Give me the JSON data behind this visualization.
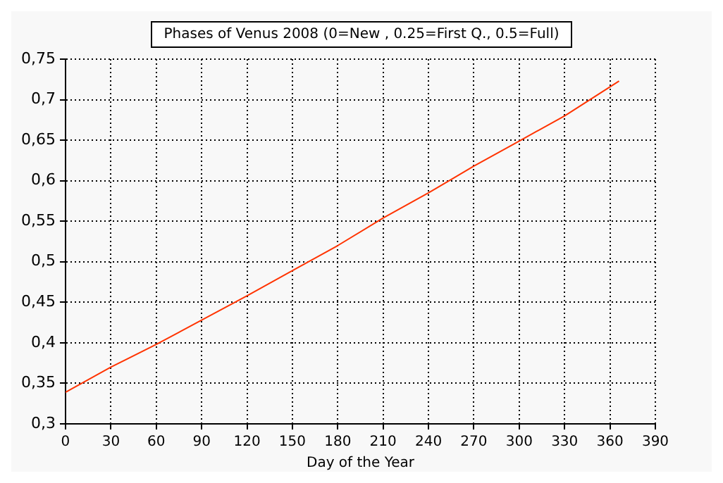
{
  "chart_data": {
    "type": "line",
    "title": "Phases of Venus 2008 (0=New , 0.25=First Q., 0.5=Full)",
    "xlabel": "Day of the Year",
    "series": [
      {
        "color": "#ff3300",
        "x": [
          0,
          30,
          60,
          90,
          120,
          150,
          180,
          210,
          240,
          270,
          300,
          330,
          366
        ],
        "values": [
          0.339,
          0.37,
          0.398,
          0.428,
          0.458,
          0.489,
          0.52,
          0.554,
          0.585,
          0.618,
          0.649,
          0.68,
          0.723
        ]
      }
    ],
    "xlim": [
      0,
      390
    ],
    "xticks": [
      0,
      30,
      60,
      90,
      120,
      150,
      180,
      210,
      240,
      270,
      300,
      330,
      360,
      390
    ],
    "ylim": [
      0.3,
      0.75
    ],
    "yticks": [
      {
        "value": 0.3,
        "label": "0,3"
      },
      {
        "value": 0.35,
        "label": "0,35"
      },
      {
        "value": 0.4,
        "label": "0,4"
      },
      {
        "value": 0.45,
        "label": "0,45"
      },
      {
        "value": 0.5,
        "label": "0,5"
      },
      {
        "value": 0.55,
        "label": "0,55"
      },
      {
        "value": 0.6,
        "label": "0,6"
      },
      {
        "value": 0.65,
        "label": "0,65"
      },
      {
        "value": 0.7,
        "label": "0,7"
      },
      {
        "value": 0.75,
        "label": "0,75"
      }
    ],
    "grid": true,
    "legend": false,
    "marker": "none",
    "line_style": "solid"
  }
}
